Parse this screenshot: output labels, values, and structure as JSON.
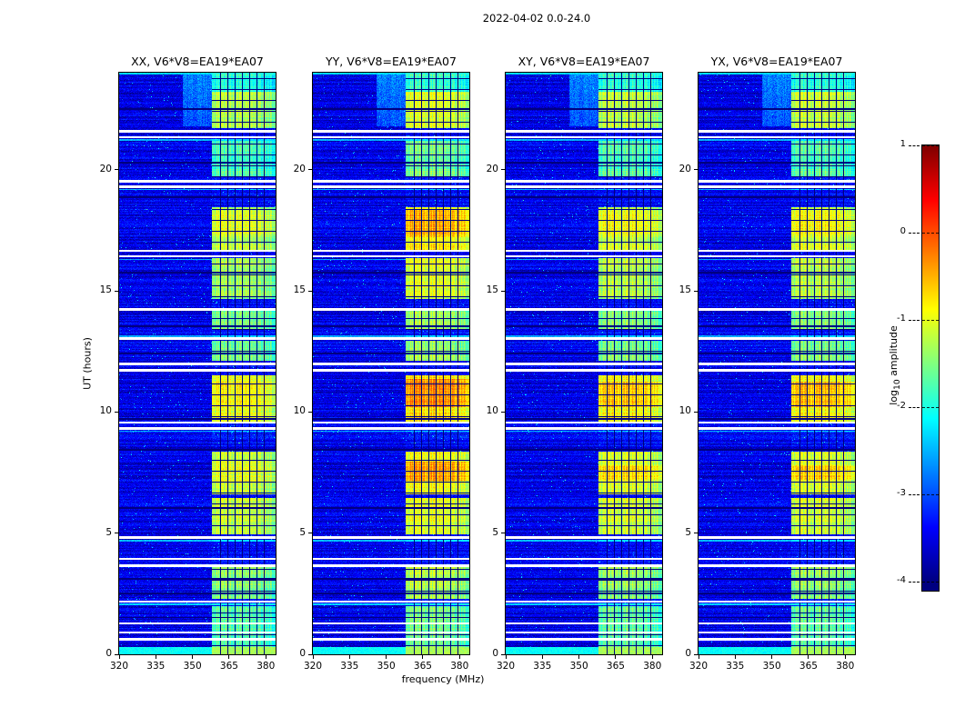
{
  "chart_data": {
    "type": "heatmap",
    "title": "2022-04-02 0.0-24.0",
    "xlabel": "frequency (MHz)",
    "ylabel": "UT (hours)",
    "xlim": [
      320,
      384
    ],
    "ylim": [
      0,
      24
    ],
    "xticks": [
      320,
      335,
      350,
      365,
      380
    ],
    "yticks": [
      0,
      5,
      10,
      15,
      20
    ],
    "panels": [
      {
        "id": "XX",
        "title": "XX, V6*V8=EA19*EA07"
      },
      {
        "id": "YY",
        "title": "YY, V6*V8=EA19*EA07"
      },
      {
        "id": "XY",
        "title": "XY, V6*V8=EA19*EA07"
      },
      {
        "id": "YX",
        "title": "YX, V6*V8=EA19*EA07"
      }
    ],
    "colorbar": {
      "label_pre": "log",
      "label_sub": "10",
      "label_post": " amplitude",
      "ticks": [
        1,
        0,
        -1,
        -2,
        -3,
        -4
      ],
      "vmin": -4,
      "vmax": 1
    },
    "render": {
      "noise_mean": -3.5,
      "noise_sigma": 0.32,
      "speckle_prob": 0.012,
      "speckle_boost": 1.0,
      "band": {
        "f0": 358,
        "baseline_boost": 0.12,
        "line_spacing": 0.45,
        "flag_channels": [
          361.4,
          364.4,
          367.4,
          370.4,
          373.4,
          376.4,
          379.4
        ],
        "env_center": 368,
        "env_width": 15,
        "env_depth": 0.25
      },
      "blobs": {
        "XX": [
          [
            0.25,
            2.0,
            -1.7
          ],
          [
            2.3,
            3.6,
            -1.45
          ],
          [
            4.95,
            6.45,
            -1.15
          ],
          [
            6.6,
            8.35,
            -1.15
          ],
          [
            7.1,
            7.95,
            -1.0
          ],
          [
            9.6,
            11.5,
            -1.0
          ],
          [
            10.2,
            11.3,
            -0.85
          ],
          [
            12.1,
            12.95,
            -1.55
          ],
          [
            13.4,
            14.2,
            -1.5
          ],
          [
            14.65,
            16.35,
            -1.35
          ],
          [
            16.7,
            18.45,
            -1.2
          ],
          [
            17.2,
            18.3,
            -1.05
          ],
          [
            19.7,
            21.2,
            -1.75
          ],
          [
            21.7,
            23.2,
            -1.25
          ],
          [
            23.2,
            23.95,
            -1.9
          ]
        ],
        "YY": [
          [
            0.25,
            2.0,
            -1.55
          ],
          [
            2.3,
            3.6,
            -1.25
          ],
          [
            4.95,
            6.45,
            -1.0
          ],
          [
            6.6,
            8.35,
            -0.9
          ],
          [
            7.15,
            7.95,
            -0.4
          ],
          [
            9.6,
            11.5,
            -0.75
          ],
          [
            10.2,
            11.35,
            -0.3
          ],
          [
            12.1,
            12.95,
            -1.35
          ],
          [
            13.4,
            14.2,
            -1.3
          ],
          [
            14.65,
            16.35,
            -1.05
          ],
          [
            16.7,
            18.45,
            -0.8
          ],
          [
            17.2,
            18.35,
            -0.5
          ],
          [
            19.7,
            21.2,
            -1.55
          ],
          [
            21.7,
            23.2,
            -1.05
          ],
          [
            23.2,
            23.95,
            -1.8
          ]
        ],
        "XY": [
          [
            0.25,
            2.0,
            -1.65
          ],
          [
            2.3,
            3.6,
            -1.4
          ],
          [
            4.95,
            6.45,
            -1.1
          ],
          [
            6.6,
            8.35,
            -1.05
          ],
          [
            7.2,
            7.8,
            -0.7
          ],
          [
            9.6,
            11.5,
            -0.9
          ],
          [
            10.2,
            11.25,
            -0.6
          ],
          [
            12.1,
            12.95,
            -1.5
          ],
          [
            13.4,
            14.2,
            -1.45
          ],
          [
            14.65,
            16.35,
            -1.25
          ],
          [
            16.7,
            18.45,
            -1.1
          ],
          [
            17.2,
            18.3,
            -0.95
          ],
          [
            19.7,
            21.2,
            -1.7
          ],
          [
            21.7,
            23.2,
            -1.2
          ],
          [
            23.2,
            23.95,
            -1.85
          ]
        ],
        "YX": [
          [
            0.25,
            2.0,
            -1.65
          ],
          [
            2.3,
            3.6,
            -1.4
          ],
          [
            4.95,
            6.45,
            -1.1
          ],
          [
            6.6,
            8.35,
            -1.05
          ],
          [
            7.2,
            7.8,
            -0.65
          ],
          [
            9.6,
            11.5,
            -0.9
          ],
          [
            10.2,
            11.25,
            -0.55
          ],
          [
            12.1,
            12.95,
            -1.5
          ],
          [
            13.4,
            14.2,
            -1.45
          ],
          [
            14.65,
            16.35,
            -1.25
          ],
          [
            16.7,
            18.45,
            -1.05
          ],
          [
            17.2,
            18.3,
            -0.9
          ],
          [
            19.7,
            21.2,
            -1.7
          ],
          [
            21.7,
            23.2,
            -1.15
          ],
          [
            23.2,
            23.95,
            -1.85
          ]
        ]
      },
      "white_gaps": [
        [
          0.62,
          0.1
        ],
        [
          0.9,
          0.08
        ],
        [
          1.28,
          0.08
        ],
        [
          2.18,
          0.1
        ],
        [
          3.66,
          0.1
        ],
        [
          3.95,
          0.08
        ],
        [
          4.82,
          0.12
        ],
        [
          9.32,
          0.1
        ],
        [
          9.55,
          0.08
        ],
        [
          11.72,
          0.14
        ],
        [
          11.98,
          0.12
        ],
        [
          13.02,
          0.1
        ],
        [
          14.24,
          0.1
        ],
        [
          16.42,
          0.1
        ],
        [
          16.65,
          0.08
        ],
        [
          19.3,
          0.1
        ],
        [
          19.52,
          0.08
        ],
        [
          21.34,
          0.1
        ],
        [
          21.58,
          0.08
        ]
      ],
      "cyan_rows": [
        [
          0.14,
          0.3,
          -2.1,
          0.8
        ],
        [
          2.05,
          0.08,
          -2.35,
          0.3
        ],
        [
          4.7,
          0.07,
          -2.45,
          0.2
        ],
        [
          9.2,
          0.06,
          -2.5,
          0.2
        ],
        [
          13.12,
          0.06,
          -2.55,
          0.2
        ],
        [
          16.3,
          0.06,
          -2.55,
          0.2
        ],
        [
          19.18,
          0.06,
          -2.5,
          0.2
        ],
        [
          21.22,
          0.06,
          -2.5,
          0.2
        ],
        [
          23.95,
          0.08,
          -2.3,
          0.3
        ]
      ],
      "black_rows": [
        1.52,
        2.5,
        3.1,
        6.05,
        8.45,
        9.7,
        12.4,
        13.55,
        15.75,
        18.85,
        20.3,
        22.5
      ],
      "diffuse_top": {
        "t0": 21.8,
        "t1": 24,
        "f0": 346,
        "v": -3.0,
        "ramp": 0.12
      }
    }
  }
}
